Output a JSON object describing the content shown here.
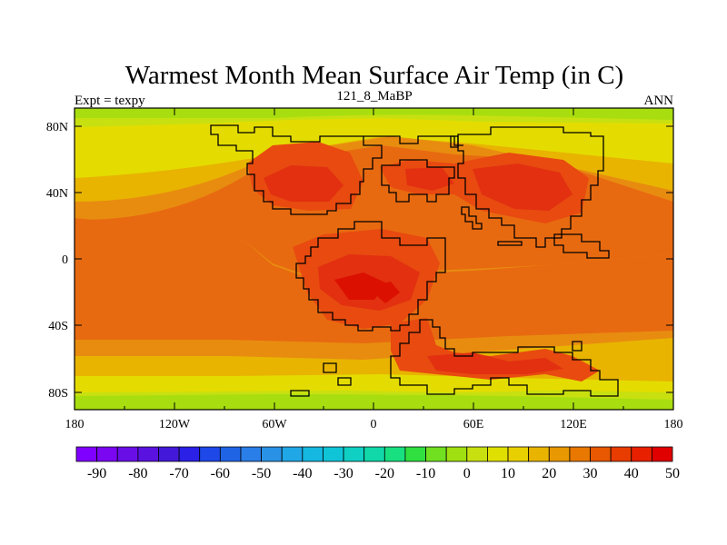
{
  "title": "Warmest Month Mean Surface Air Temp (in C)",
  "header": {
    "left": "Expt = texpy",
    "center": "121_8_MaBP",
    "right": "ANN"
  },
  "axes": {
    "x_ticks": [
      "180",
      "120W",
      "60W",
      "0",
      "60E",
      "120E",
      "180"
    ],
    "y_ticks": [
      "80N",
      "40N",
      "0",
      "40S",
      "80S"
    ]
  },
  "colorbar": {
    "labels": [
      "-90",
      "-80",
      "-70",
      "-60",
      "-50",
      "-40",
      "-30",
      "-20",
      "-10",
      "0",
      "10",
      "20",
      "30",
      "40",
      "50"
    ],
    "colors": [
      "#8000ff",
      "#7a06f2",
      "#6a0ee8",
      "#5a12e0",
      "#4418d8",
      "#2a20e6",
      "#1e48e8",
      "#2064e6",
      "#2a7ee8",
      "#2a92e6",
      "#20a8e6",
      "#14b8e0",
      "#10c4d8",
      "#10d0c4",
      "#10d8a8",
      "#18e080",
      "#30e040",
      "#70e020",
      "#a0e010",
      "#c8e010",
      "#e0e000",
      "#e8d000",
      "#e8b400",
      "#e89800",
      "#e87800",
      "#e85800",
      "#e83c00",
      "#e82000",
      "#e00000"
    ]
  },
  "map_colors": {
    "lt0": "#a8de10",
    "lt10": "#c8e010",
    "lt20": "#e4dc00",
    "lt30": "#e8b400",
    "lt40": "#e88c10",
    "lt50": "#e86a10",
    "hot": "#e84a10",
    "hotter": "#e23010",
    "hottest": "#dc1000"
  }
}
